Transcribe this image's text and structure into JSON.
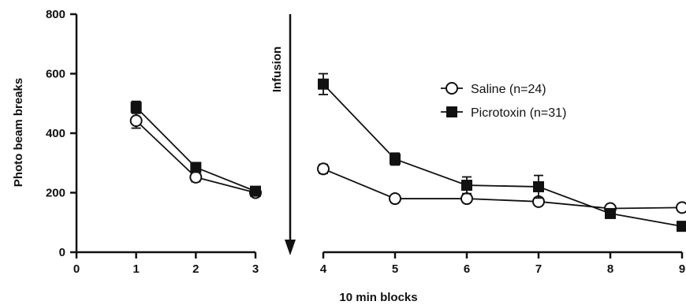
{
  "chart_data": {
    "type": "line",
    "ylabel": "Photo beam breaks",
    "xlabel": "10 min blocks",
    "annotation": "Infusion",
    "ylim": [
      0,
      800
    ],
    "y_ticks": [
      "0",
      "200",
      "400",
      "600",
      "800"
    ],
    "panels": [
      {
        "xlim": [
          0,
          3
        ],
        "x_ticks": [
          "0",
          "1",
          "2",
          "3"
        ]
      },
      {
        "xlim": [
          4,
          9
        ],
        "x_ticks": [
          "4",
          "5",
          "6",
          "7",
          "8",
          "9"
        ]
      }
    ],
    "series": [
      {
        "name": "Saline (n=24)",
        "marker": "circle-open",
        "segments": [
          {
            "x": [
              1,
              2,
              3
            ],
            "y": [
              442,
              252,
              200
            ],
            "err": [
              25,
              15,
              8
            ]
          },
          {
            "x": [
              4,
              5,
              6,
              7,
              8,
              9
            ],
            "y": [
              280,
              180,
              180,
              170,
              147,
              150
            ],
            "err": [
              15,
              8,
              8,
              10,
              8,
              8
            ]
          }
        ]
      },
      {
        "name": "Picrotoxin (n=31)",
        "marker": "square-filled",
        "segments": [
          {
            "x": [
              1,
              2,
              3
            ],
            "y": [
              487,
              285,
              205
            ],
            "err": [
              20,
              15,
              8
            ]
          },
          {
            "x": [
              4,
              5,
              6,
              7,
              8,
              9
            ],
            "y": [
              565,
              313,
              225,
              220,
              130,
              87
            ],
            "err": [
              35,
              20,
              28,
              38,
              8,
              8
            ]
          }
        ]
      }
    ]
  }
}
